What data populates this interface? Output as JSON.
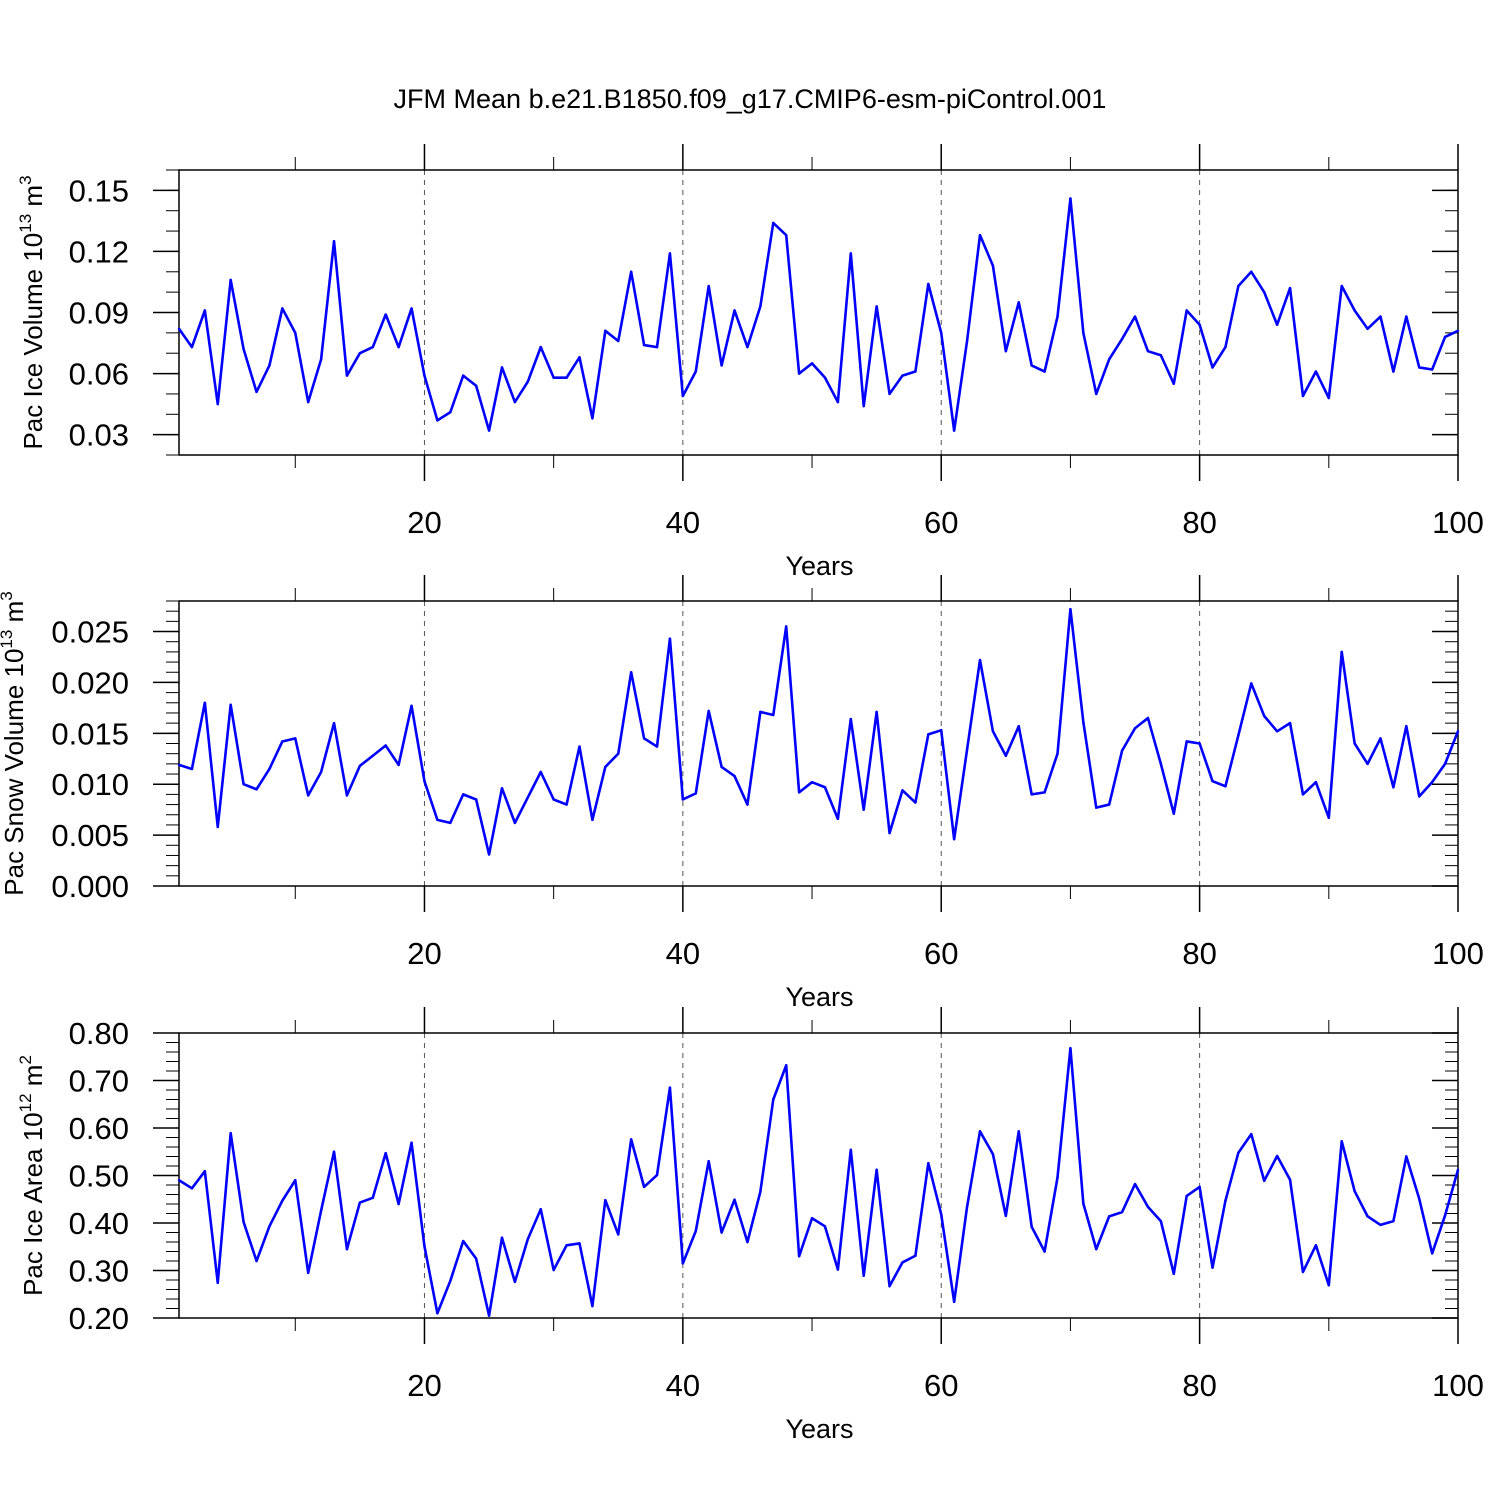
{
  "figure_title": "JFM Mean b.e21.B1850.f09_g17.CMIP6-esm-piControl.001",
  "chart_data": [
    {
      "type": "line",
      "ylabel": {
        "prefix": "Pac Ice Volume 10",
        "exp": "13",
        "unit": " m",
        "unit_exp": "3"
      },
      "xlabel": "Years",
      "xlim": [
        1,
        100
      ],
      "ylim": [
        0.02,
        0.16
      ],
      "xticks": [
        20,
        40,
        60,
        80,
        100
      ],
      "xtick_labels": [
        "20",
        "40",
        "60",
        "80",
        "100"
      ],
      "yticks": [
        0.03,
        0.06,
        0.09,
        0.12,
        0.15
      ],
      "ytick_labels": [
        "0.03",
        "0.06",
        "0.09",
        "0.12",
        "0.15"
      ],
      "yminor_step": 0.01,
      "grid": "dashed vertical at major x ticks",
      "color": "#0000ff",
      "x_start": 1,
      "values": [
        0.082,
        0.073,
        0.091,
        0.045,
        0.106,
        0.072,
        0.051,
        0.064,
        0.092,
        0.08,
        0.046,
        0.067,
        0.125,
        0.059,
        0.07,
        0.073,
        0.089,
        0.073,
        0.092,
        0.059,
        0.037,
        0.041,
        0.059,
        0.054,
        0.032,
        0.063,
        0.046,
        0.056,
        0.073,
        0.058,
        0.058,
        0.068,
        0.038,
        0.081,
        0.076,
        0.11,
        0.074,
        0.073,
        0.119,
        0.049,
        0.061,
        0.103,
        0.064,
        0.091,
        0.073,
        0.093,
        0.134,
        0.128,
        0.06,
        0.065,
        0.058,
        0.046,
        0.119,
        0.044,
        0.093,
        0.05,
        0.059,
        0.061,
        0.104,
        0.08,
        0.032,
        0.076,
        0.128,
        0.113,
        0.071,
        0.095,
        0.064,
        0.061,
        0.088,
        0.146,
        0.08,
        0.05,
        0.067,
        0.077,
        0.088,
        0.071,
        0.069,
        0.055,
        0.091,
        0.084,
        0.063,
        0.073,
        0.103,
        0.11,
        0.1,
        0.084,
        0.102,
        0.049,
        0.061,
        0.048,
        0.103,
        0.091,
        0.082,
        0.088,
        0.061,
        0.088,
        0.063,
        0.062,
        0.078,
        0.081
      ]
    },
    {
      "type": "line",
      "ylabel": {
        "prefix": "Pac Snow Volume 10",
        "exp": "13",
        "unit": " m",
        "unit_exp": "3"
      },
      "xlabel": "Years",
      "xlim": [
        1,
        100
      ],
      "ylim": [
        0.0,
        0.028
      ],
      "xticks": [
        20,
        40,
        60,
        80,
        100
      ],
      "xtick_labels": [
        "20",
        "40",
        "60",
        "80",
        "100"
      ],
      "yticks": [
        0.0,
        0.005,
        0.01,
        0.015,
        0.02,
        0.025
      ],
      "ytick_labels": [
        "0.000",
        "0.005",
        "0.010",
        "0.015",
        "0.020",
        "0.025"
      ],
      "yminor_step": 0.001,
      "grid": "dashed vertical at major x ticks",
      "color": "#0000ff",
      "x_start": 1,
      "values": [
        0.0119,
        0.0115,
        0.018,
        0.0058,
        0.0178,
        0.01,
        0.0095,
        0.0115,
        0.0142,
        0.0145,
        0.0089,
        0.0112,
        0.016,
        0.0089,
        0.0118,
        0.0128,
        0.0138,
        0.0119,
        0.0177,
        0.0103,
        0.0065,
        0.0062,
        0.009,
        0.0085,
        0.0031,
        0.0096,
        0.0062,
        0.0087,
        0.0112,
        0.0085,
        0.008,
        0.0137,
        0.0065,
        0.0117,
        0.013,
        0.021,
        0.0145,
        0.0137,
        0.0243,
        0.0085,
        0.0091,
        0.0172,
        0.0117,
        0.0108,
        0.008,
        0.0171,
        0.0168,
        0.0255,
        0.0092,
        0.0102,
        0.0097,
        0.0066,
        0.0164,
        0.0075,
        0.0171,
        0.0052,
        0.0094,
        0.0082,
        0.0149,
        0.0153,
        0.0046,
        0.0134,
        0.0222,
        0.0152,
        0.0128,
        0.0157,
        0.009,
        0.0092,
        0.013,
        0.0272,
        0.0161,
        0.0077,
        0.008,
        0.0133,
        0.0155,
        0.0165,
        0.012,
        0.0071,
        0.0142,
        0.014,
        0.0103,
        0.0098,
        0.0148,
        0.0199,
        0.0167,
        0.0152,
        0.016,
        0.009,
        0.0102,
        0.0067,
        0.023,
        0.014,
        0.012,
        0.0145,
        0.0097,
        0.0157,
        0.0088,
        0.0102,
        0.012,
        0.0152
      ]
    },
    {
      "type": "line",
      "ylabel": {
        "prefix": "Pac Ice Area 10",
        "exp": "12",
        "unit": " m",
        "unit_exp": "2"
      },
      "xlabel": "Years",
      "xlim": [
        1,
        100
      ],
      "ylim": [
        0.2,
        0.8
      ],
      "xticks": [
        20,
        40,
        60,
        80,
        100
      ],
      "xtick_labels": [
        "20",
        "40",
        "60",
        "80",
        "100"
      ],
      "yticks": [
        0.2,
        0.3,
        0.4,
        0.5,
        0.6,
        0.7,
        0.8
      ],
      "ytick_labels": [
        "0.20",
        "0.30",
        "0.40",
        "0.50",
        "0.60",
        "0.70",
        "0.80"
      ],
      "yminor_step": 0.02,
      "grid": "dashed vertical at major x ticks",
      "color": "#0000ff",
      "x_start": 1,
      "values": [
        0.49,
        0.473,
        0.509,
        0.274,
        0.589,
        0.402,
        0.32,
        0.393,
        0.447,
        0.49,
        0.295,
        0.426,
        0.55,
        0.345,
        0.443,
        0.453,
        0.547,
        0.44,
        0.569,
        0.351,
        0.21,
        0.278,
        0.362,
        0.325,
        0.205,
        0.369,
        0.276,
        0.366,
        0.429,
        0.301,
        0.353,
        0.357,
        0.225,
        0.448,
        0.376,
        0.576,
        0.476,
        0.501,
        0.685,
        0.315,
        0.383,
        0.53,
        0.38,
        0.449,
        0.36,
        0.466,
        0.66,
        0.732,
        0.33,
        0.41,
        0.393,
        0.302,
        0.554,
        0.289,
        0.512,
        0.267,
        0.317,
        0.331,
        0.526,
        0.418,
        0.234,
        0.434,
        0.593,
        0.545,
        0.415,
        0.593,
        0.392,
        0.34,
        0.496,
        0.768,
        0.441,
        0.345,
        0.414,
        0.423,
        0.482,
        0.434,
        0.404,
        0.293,
        0.457,
        0.476,
        0.306,
        0.447,
        0.548,
        0.587,
        0.489,
        0.541,
        0.491,
        0.297,
        0.353,
        0.269,
        0.572,
        0.467,
        0.414,
        0.396,
        0.404,
        0.54,
        0.451,
        0.336,
        0.416,
        0.512
      ]
    }
  ]
}
